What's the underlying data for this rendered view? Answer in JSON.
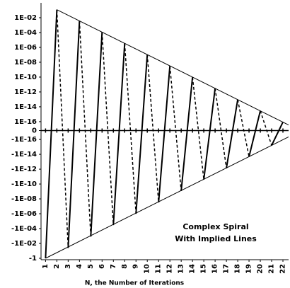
{
  "chart_data": {
    "type": "line",
    "yscale": "symlog",
    "xlabel": "N, the Number of Iterations",
    "annotations": [
      "Complex Spiral",
      "With Implied Lines"
    ],
    "xlim": [
      0.6,
      22.5
    ],
    "xticks": [
      1,
      2,
      3,
      4,
      5,
      6,
      7,
      8,
      9,
      10,
      11,
      12,
      13,
      14,
      15,
      16,
      17,
      18,
      19,
      20,
      21,
      22
    ],
    "ylim": [
      -1,
      1
    ],
    "yticks": [
      {
        "value": 0.01,
        "label": "1E-02"
      },
      {
        "value": 0.0001,
        "label": "1E-04"
      },
      {
        "value": 1e-06,
        "label": "1E-06"
      },
      {
        "value": 1e-08,
        "label": "1E-08"
      },
      {
        "value": 1e-10,
        "label": "1E-10"
      },
      {
        "value": 1e-12,
        "label": "1E-12"
      },
      {
        "value": 1e-14,
        "label": "1E-14"
      },
      {
        "value": 1e-16,
        "label": "1E-16"
      },
      0,
      {
        "value": -1e-16,
        "label": "-1E-16"
      },
      {
        "value": -1e-14,
        "label": "-1E-14"
      },
      {
        "value": -1e-12,
        "label": "-1E-12"
      },
      {
        "value": -1e-10,
        "label": "-1E-10"
      },
      {
        "value": -1e-08,
        "label": "-1E-08"
      },
      {
        "value": -1e-06,
        "label": "-1E-06"
      },
      {
        "value": -0.0001,
        "label": "-1E-04"
      },
      {
        "value": -0.01,
        "label": "-1E-02"
      },
      -1
    ],
    "series": [
      {
        "color": "#000000",
        "style": "solid",
        "width": 2,
        "x": [
          1,
          2,
          2.5,
          3,
          4,
          4.5,
          5,
          6,
          6.5,
          7,
          8,
          8.5,
          9,
          10,
          10.5,
          11,
          12,
          12.5,
          13,
          14,
          14.5,
          15,
          16,
          16.5,
          17,
          18,
          18.5,
          19,
          20,
          20.5,
          21,
          22
        ],
        "values": [
          -1,
          0.12,
          null,
          -0.04,
          0.0037,
          null,
          -0.0012,
          0.00011,
          null,
          -3.4e-05,
          3.5e-06,
          null,
          -1e-06,
          1.1e-07,
          null,
          -3e-08,
          3.2e-09,
          null,
          -8.5e-10,
          1e-10,
          null,
          -2.5e-11,
          3.1e-12,
          null,
          -7.4e-13,
          9.3e-14,
          null,
          -2.1e-14,
          2.9e-15,
          null,
          -6.3e-16,
          8.7e-17
        ]
      },
      {
        "color": "#000000",
        "style": "dashed",
        "width": 1.5,
        "x": [
          2,
          3,
          3.5,
          4,
          5,
          5.5,
          6,
          7,
          7.5,
          8,
          9,
          9.5,
          10,
          11,
          11.5,
          12,
          13,
          13.5,
          14,
          15,
          15.5,
          16,
          17,
          17.5,
          18,
          19,
          19.5,
          20,
          21
        ],
        "values": [
          0.12,
          -0.04,
          null,
          0.0037,
          -0.0012,
          null,
          0.00011,
          -3.4e-05,
          null,
          3.5e-06,
          -1e-06,
          null,
          1.1e-07,
          -3e-08,
          null,
          3.2e-09,
          -8.5e-10,
          null,
          1e-10,
          -2.5e-11,
          null,
          3.1e-12,
          -7.4e-13,
          null,
          9.3e-14,
          -2.1e-14,
          null,
          2.9e-15,
          -6.3e-16
        ]
      },
      {
        "color": "#000000",
        "style": "solid",
        "width": 1,
        "x": [
          2,
          22.5
        ],
        "values": [
          0.12,
          3.6e-17
        ]
      },
      {
        "color": "#000000",
        "style": "solid",
        "width": 1,
        "x": [
          1,
          22.5
        ],
        "values": [
          -1,
          -4.5e-17
        ]
      }
    ]
  }
}
